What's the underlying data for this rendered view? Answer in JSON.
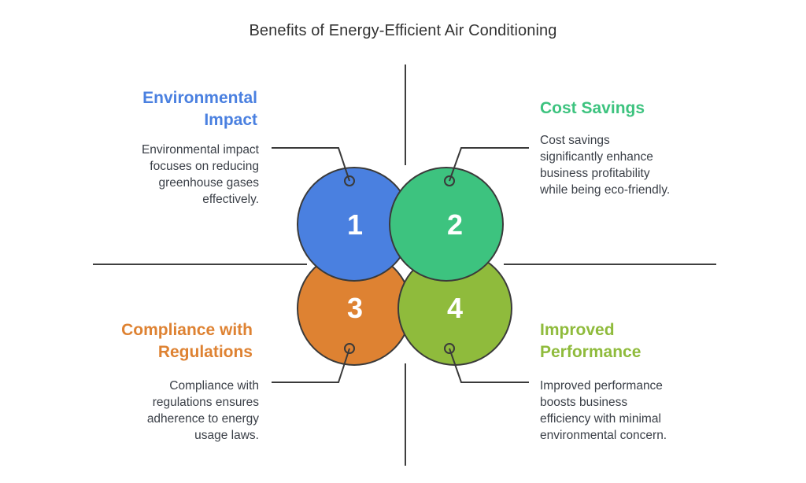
{
  "title": "Benefits of Energy-Efficient Air Conditioning",
  "colors": {
    "environmental": "#4a80e0",
    "cost": "#3dc37f",
    "compliance": "#de8232",
    "performance": "#8fbb3c",
    "outline": "#3a3a3a",
    "line": "#3f3f3f"
  },
  "items": [
    {
      "number": "1",
      "heading": "Environmental\nImpact",
      "description": "Environmental impact\nfocuses on reducing\ngreenhouse gases\neffectively."
    },
    {
      "number": "2",
      "heading": "Cost Savings",
      "description": "Cost savings\nsignificantly enhance\nbusiness profitability\nwhile being eco-friendly."
    },
    {
      "number": "3",
      "heading": "Compliance with\nRegulations",
      "description": "Compliance with\nregulations ensures\nadherence to energy\nusage laws."
    },
    {
      "number": "4",
      "heading": "Improved\nPerformance",
      "description": "Improved performance\nboosts business\nefficiency with minimal\nenvironmental concern."
    }
  ]
}
